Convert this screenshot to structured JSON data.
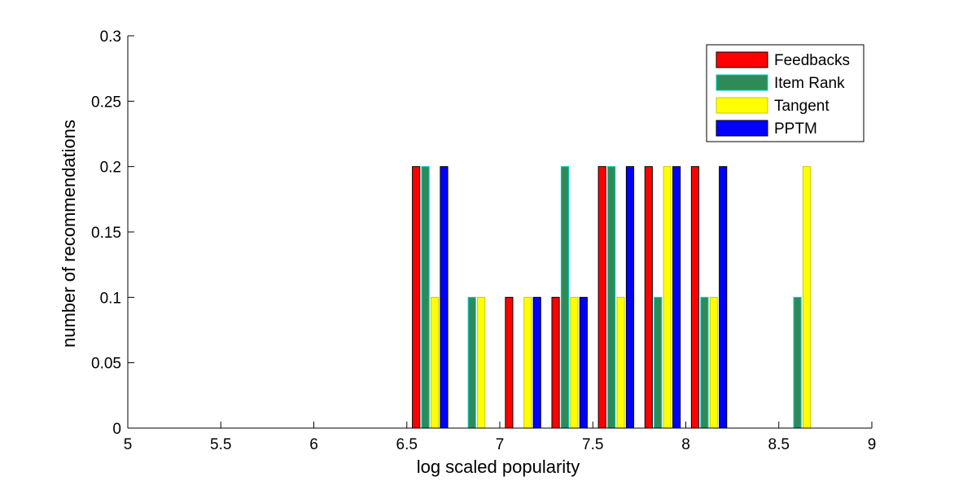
{
  "chart_data": {
    "type": "bar",
    "title": "",
    "xlabel": "log scaled popularity",
    "ylabel": "number of recommendations",
    "xlim": [
      5,
      9
    ],
    "ylim": [
      0,
      0.3
    ],
    "x_ticks": [
      "5",
      "5.5",
      "6",
      "6.5",
      "7",
      "7.5",
      "8",
      "8.5",
      "9"
    ],
    "y_ticks": [
      "0",
      "0.05",
      "0.1",
      "0.15",
      "0.2",
      "0.25",
      "0.3"
    ],
    "bin_centers": [
      5.125,
      5.375,
      5.625,
      5.875,
      6.125,
      6.375,
      6.625,
      6.875,
      7.125,
      7.375,
      7.625,
      7.875,
      8.125,
      8.375,
      8.625,
      8.875
    ],
    "grid": false,
    "legend_position": "top-right",
    "series": [
      {
        "name": "Feedbacks",
        "color": "#ff0000",
        "edge": "#000000",
        "values": [
          0,
          0,
          0,
          0,
          0,
          0,
          0.2,
          0,
          0.1,
          0.1,
          0.2,
          0.2,
          0.2,
          0,
          0,
          0
        ]
      },
      {
        "name": "Item Rank",
        "color": "#2e8b57",
        "edge": "#00cccc",
        "values": [
          0,
          0,
          0,
          0,
          0,
          0,
          0.2,
          0.1,
          0,
          0.2,
          0.2,
          0.1,
          0.1,
          0,
          0.1,
          0
        ]
      },
      {
        "name": "Tangent",
        "color": "#ffff00",
        "edge": "#c8c800",
        "values": [
          0,
          0,
          0,
          0,
          0,
          0,
          0.1,
          0.1,
          0.1,
          0.1,
          0.1,
          0.2,
          0.1,
          0,
          0.2,
          0
        ]
      },
      {
        "name": "PPTM",
        "color": "#0000ff",
        "edge": "#000000",
        "values": [
          0,
          0,
          0,
          0,
          0,
          0,
          0.2,
          0,
          0.1,
          0.1,
          0.2,
          0.2,
          0.2,
          0,
          0,
          0
        ]
      }
    ]
  }
}
